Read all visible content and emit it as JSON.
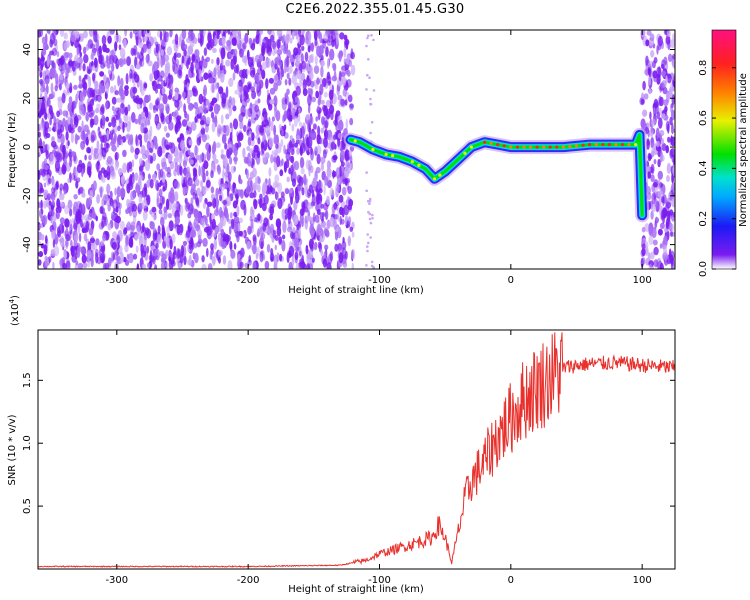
{
  "title": "C2E6.2022.355.01.45.G30",
  "colors": {
    "noise": "#7a1cf0",
    "noise_light": "#c9a6f7",
    "snr_line": "#e8302c",
    "axis": "#000000"
  },
  "chart_data": [
    {
      "type": "heatmap",
      "name": "spectrogram",
      "xlabel": "Height of straight line (km)",
      "ylabel": "Frequency (Hz)",
      "xlim": [
        -360,
        125
      ],
      "ylim": [
        -50,
        48
      ],
      "x_ticks": [
        -300,
        -200,
        -100,
        0,
        100
      ],
      "y_ticks": [
        -40,
        -20,
        0,
        20,
        40
      ],
      "grid": false,
      "noise_regions": [
        [
          -360,
          -120
        ],
        [
          100,
          125
        ]
      ],
      "signal_track": {
        "x": [
          -122,
          -115,
          -105,
          -95,
          -85,
          -75,
          -65,
          -58,
          -50,
          -40,
          -30,
          -20,
          -10,
          0,
          20,
          40,
          60,
          80,
          95,
          98,
          100
        ],
        "y": [
          3,
          2,
          -1,
          -3,
          -4,
          -6,
          -9,
          -13,
          -10,
          -5,
          0,
          2,
          1,
          0,
          0,
          0,
          1,
          1,
          1,
          5,
          -28
        ]
      },
      "colorbar": {
        "label": "Normalized spectral amplitude",
        "range": [
          0.0,
          0.95
        ],
        "ticks": [
          "0.0",
          "0.2",
          "0.4",
          "0.6",
          "0.8"
        ],
        "tick_values": [
          0.0,
          0.2,
          0.4,
          0.6,
          0.8
        ],
        "colormap": [
          "#ffffff",
          "#7a1cf0",
          "#1b1bf5",
          "#00d8f0",
          "#00e000",
          "#e8f000",
          "#ff8000",
          "#ff2020",
          "#ff1080"
        ]
      }
    },
    {
      "type": "line",
      "name": "snr",
      "xlabel": "Height of straight line (km)",
      "ylabel": "SNR (10 * v/v)",
      "y_multiplier": "(x10",
      "y_multiplier_exp": "4",
      "y_multiplier_close": ")",
      "xlim": [
        -360,
        125
      ],
      "ylim": [
        0,
        1.9
      ],
      "x_ticks": [
        -300,
        -200,
        -100,
        0,
        100
      ],
      "y_ticks": [
        0.5,
        1.0,
        1.5
      ],
      "y_tick_labels": [
        "0.5",
        "1.0",
        "1.5"
      ],
      "grid": false,
      "series": [
        {
          "x": [
            -360,
            -300,
            -200,
            -130,
            -110,
            -100,
            -90,
            -75,
            -60,
            -55,
            -50,
            -45,
            -40,
            -35,
            -30,
            -20,
            -10,
            0,
            10,
            20,
            30,
            40,
            50,
            60,
            80,
            100,
            125
          ],
          "y": [
            0.02,
            0.02,
            0.02,
            0.03,
            0.07,
            0.12,
            0.15,
            0.2,
            0.25,
            0.35,
            0.25,
            0.05,
            0.3,
            0.55,
            0.7,
            0.85,
            1.05,
            1.2,
            1.35,
            1.45,
            1.52,
            1.6,
            1.62,
            1.63,
            1.64,
            1.62,
            1.6
          ]
        }
      ]
    }
  ]
}
